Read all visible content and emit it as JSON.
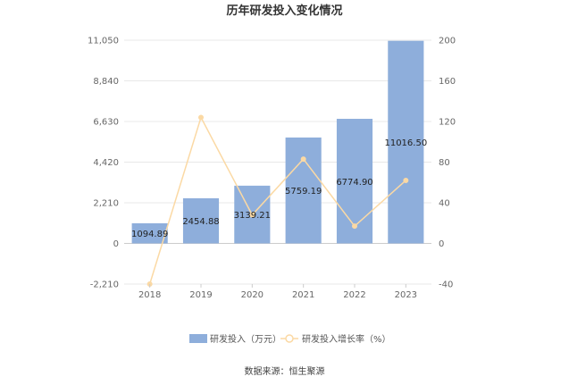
{
  "chart_data": {
    "type": "bar",
    "title": "历年研发投入变化情况",
    "categories": [
      "2018",
      "2019",
      "2020",
      "2021",
      "2022",
      "2023"
    ],
    "series": [
      {
        "name": "研发投入（万元）",
        "type": "bar",
        "axis": "left",
        "color": "#8eaedb",
        "values": [
          1094.89,
          2454.88,
          3139.21,
          5759.19,
          6774.9,
          11016.5
        ],
        "labels": [
          "1094.89",
          "2454.88",
          "3139.21",
          "5759.19",
          "6774.90",
          "11016.50"
        ]
      },
      {
        "name": "研发投入增长率（%）",
        "type": "line",
        "axis": "right",
        "color": "#fbd9a4",
        "values": [
          -40,
          124,
          28,
          83,
          17,
          62
        ]
      }
    ],
    "y_left": {
      "ticks": [
        "11,050",
        "8,840",
        "6,630",
        "4,420",
        "2,210",
        "0",
        "-2,210"
      ],
      "min": -2210,
      "max": 11050
    },
    "y_right": {
      "ticks": [
        "200",
        "160",
        "120",
        "80",
        "40",
        "0",
        "-40"
      ],
      "min": -40,
      "max": 200
    },
    "grid": true,
    "legend_position": "bottom"
  },
  "footer": {
    "source": "数据来源：恒生聚源"
  }
}
